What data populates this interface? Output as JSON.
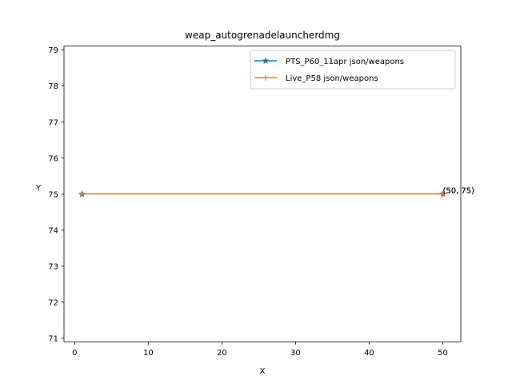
{
  "chart_data": {
    "type": "line",
    "title": "weap_autogrenadelauncherdmg",
    "xlabel": "X",
    "ylabel": "Y",
    "xlim": [
      -1.45,
      52.45
    ],
    "ylim": [
      70.9,
      79.1
    ],
    "x_ticks": [
      0,
      10,
      20,
      30,
      40,
      50
    ],
    "y_ticks": [
      71,
      72,
      73,
      74,
      75,
      76,
      77,
      78,
      79
    ],
    "grid": false,
    "legend_position": "top-right",
    "series": [
      {
        "name": "PTS_P60_11apr json/weapons",
        "color": "#1f77b4",
        "marker": "star",
        "x": [
          1,
          50
        ],
        "y": [
          75,
          75
        ]
      },
      {
        "name": "Live_P58 json/weapons",
        "color": "#ff7f0e",
        "marker": "plus",
        "x": [
          1,
          50
        ],
        "y": [
          75,
          75
        ]
      }
    ],
    "annotations": [
      {
        "text": "(50, 75)",
        "x": 50,
        "y": 75
      },
      {
        "text": "(50, 75)",
        "x": 50,
        "y": 75
      }
    ]
  }
}
